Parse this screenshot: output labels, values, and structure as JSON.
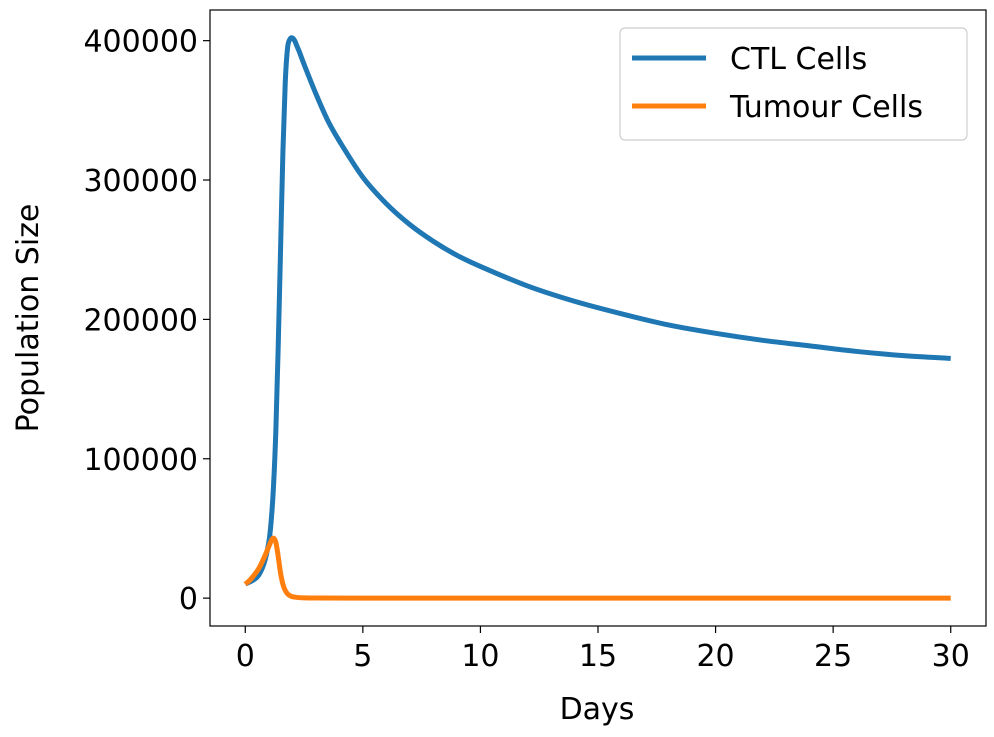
{
  "chart_data": {
    "type": "line",
    "title": "",
    "xlabel": "Days",
    "ylabel": "Population Size",
    "xlim": [
      -1.5,
      31.5
    ],
    "ylim": [
      -20000,
      422000
    ],
    "xticks": [
      0,
      5,
      10,
      15,
      20,
      25,
      30
    ],
    "xtick_labels": [
      "0",
      "5",
      "10",
      "15",
      "20",
      "25",
      "30"
    ],
    "yticks": [
      0,
      100000,
      200000,
      300000,
      400000
    ],
    "ytick_labels": [
      "0",
      "100000",
      "200000",
      "300000",
      "400000"
    ],
    "grid": false,
    "legend_position": "top-right",
    "series": [
      {
        "name": "CTL Cells",
        "color": "#1f77b4",
        "x": [
          0,
          0.5,
          0.8,
          1.0,
          1.1,
          1.2,
          1.3,
          1.4,
          1.5,
          1.6,
          1.7,
          1.8,
          1.9,
          2.0,
          2.1,
          2.2,
          2.3,
          2.5,
          3,
          3.5,
          4,
          5,
          6,
          7,
          8,
          9,
          10,
          12,
          14,
          16,
          18,
          20,
          22,
          24,
          26,
          28,
          30
        ],
        "y": [
          10000,
          15000,
          25000,
          40000,
          55000,
          80000,
          120000,
          180000,
          250000,
          320000,
          370000,
          395000,
          401000,
          402000,
          400000,
          396000,
          392000,
          383000,
          362000,
          343000,
          328000,
          302000,
          283000,
          268000,
          256000,
          246000,
          238000,
          224000,
          213000,
          204000,
          196000,
          190000,
          185000,
          181000,
          177000,
          174000,
          172000
        ]
      },
      {
        "name": "Tumour Cells",
        "color": "#ff7f0e",
        "x": [
          0,
          0.2,
          0.4,
          0.6,
          0.8,
          1.0,
          1.1,
          1.2,
          1.3,
          1.4,
          1.5,
          1.6,
          1.7,
          1.8,
          1.9,
          2.0,
          2.2,
          2.5,
          3,
          5,
          10,
          15,
          20,
          25,
          30
        ],
        "y": [
          10000,
          13000,
          17000,
          22000,
          29000,
          37000,
          41000,
          43000,
          40000,
          30000,
          18000,
          10000,
          5500,
          3000,
          1800,
          1000,
          500,
          200,
          50,
          0,
          0,
          0,
          0,
          0,
          0
        ]
      }
    ]
  }
}
